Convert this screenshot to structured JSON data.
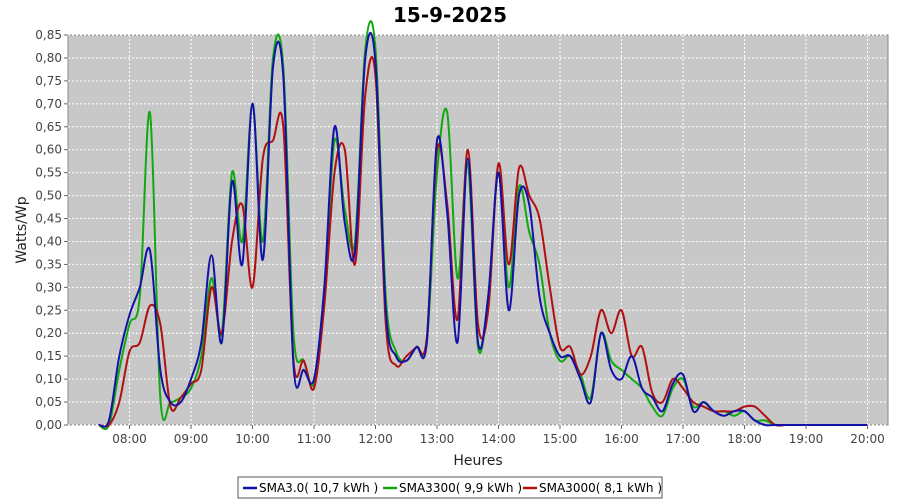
{
  "chart_data": {
    "type": "line",
    "title": "15-9-2025",
    "xlabel": "Heures",
    "ylabel": "Watts/Wp",
    "xlim": [
      "07:00",
      "20:20"
    ],
    "ylim": [
      0,
      0.85
    ],
    "x_ticks": [
      "08:00",
      "09:00",
      "10:00",
      "11:00",
      "12:00",
      "13:00",
      "14:00",
      "15:00",
      "16:00",
      "17:00",
      "18:00",
      "19:00",
      "20:00"
    ],
    "y_ticks": [
      "0,00",
      "0,05",
      "0,10",
      "0,15",
      "0,20",
      "0,25",
      "0,30",
      "0,35",
      "0,40",
      "0,45",
      "0,50",
      "0,55",
      "0,60",
      "0,65",
      "0,70",
      "0,75",
      "0,80",
      "0,85"
    ],
    "grid": true,
    "legend_position": "bottom",
    "x": [
      "07:30",
      "07:40",
      "07:50",
      "08:00",
      "08:10",
      "08:20",
      "08:30",
      "08:40",
      "08:50",
      "09:00",
      "09:10",
      "09:20",
      "09:30",
      "09:40",
      "09:50",
      "10:00",
      "10:10",
      "10:20",
      "10:30",
      "10:40",
      "10:50",
      "11:00",
      "11:10",
      "11:20",
      "11:30",
      "11:40",
      "11:50",
      "12:00",
      "12:10",
      "12:20",
      "12:30",
      "12:40",
      "12:50",
      "13:00",
      "13:10",
      "13:20",
      "13:30",
      "13:40",
      "13:50",
      "14:00",
      "14:10",
      "14:20",
      "14:30",
      "14:40",
      "14:50",
      "15:00",
      "15:10",
      "15:20",
      "15:30",
      "15:40",
      "15:50",
      "16:00",
      "16:10",
      "16:20",
      "16:30",
      "16:40",
      "16:50",
      "17:00",
      "17:10",
      "17:20",
      "17:30",
      "17:40",
      "17:50",
      "18:00",
      "18:10",
      "18:20",
      "18:30",
      "18:40",
      "18:50",
      "19:00",
      "19:10",
      "19:20",
      "19:30",
      "19:40",
      "19:50",
      "20:00"
    ],
    "series": [
      {
        "name": "SMA3.0( 10,7 kWh )",
        "color": "#1212a8",
        "values": [
          0.0,
          0.01,
          0.15,
          0.24,
          0.3,
          0.38,
          0.12,
          0.05,
          0.05,
          0.1,
          0.18,
          0.37,
          0.18,
          0.53,
          0.35,
          0.7,
          0.36,
          0.78,
          0.76,
          0.13,
          0.12,
          0.1,
          0.3,
          0.65,
          0.44,
          0.38,
          0.8,
          0.79,
          0.25,
          0.15,
          0.14,
          0.17,
          0.18,
          0.62,
          0.46,
          0.18,
          0.58,
          0.18,
          0.28,
          0.55,
          0.25,
          0.5,
          0.48,
          0.28,
          0.2,
          0.15,
          0.15,
          0.1,
          0.05,
          0.2,
          0.12,
          0.1,
          0.15,
          0.08,
          0.06,
          0.03,
          0.09,
          0.11,
          0.03,
          0.05,
          0.03,
          0.02,
          0.03,
          0.03,
          0.01,
          0.0,
          0.0,
          0.0,
          0.0,
          0.0,
          0.0,
          0.0,
          0.0,
          0.0,
          0.0,
          0.0
        ]
      },
      {
        "name": "SMA3300( 9,9 kWh )",
        "color": "#12a812",
        "values": [
          0.0,
          0.0,
          0.12,
          0.22,
          0.28,
          0.68,
          0.06,
          0.05,
          0.06,
          0.08,
          0.15,
          0.32,
          0.2,
          0.55,
          0.4,
          0.7,
          0.4,
          0.8,
          0.78,
          0.2,
          0.14,
          0.09,
          0.28,
          0.62,
          0.47,
          0.4,
          0.82,
          0.82,
          0.28,
          0.16,
          0.14,
          0.17,
          0.18,
          0.55,
          0.68,
          0.32,
          0.57,
          0.17,
          0.28,
          0.55,
          0.3,
          0.52,
          0.42,
          0.35,
          0.2,
          0.14,
          0.15,
          0.11,
          0.06,
          0.2,
          0.14,
          0.12,
          0.1,
          0.08,
          0.04,
          0.02,
          0.08,
          0.1,
          0.04,
          0.05,
          0.03,
          0.03,
          0.02,
          0.03,
          0.01,
          0.01,
          0.0,
          0.0,
          0.0,
          0.0,
          0.0,
          0.0,
          0.0,
          0.0,
          0.0,
          0.0
        ]
      },
      {
        "name": "SMA3000( 8,1 kWh )",
        "color": "#b01010",
        "values": [
          0.0,
          0.0,
          0.05,
          0.16,
          0.18,
          0.26,
          0.22,
          0.04,
          0.06,
          0.09,
          0.12,
          0.3,
          0.2,
          0.4,
          0.48,
          0.3,
          0.58,
          0.62,
          0.65,
          0.14,
          0.14,
          0.08,
          0.26,
          0.55,
          0.6,
          0.35,
          0.72,
          0.76,
          0.22,
          0.13,
          0.15,
          0.17,
          0.19,
          0.6,
          0.48,
          0.23,
          0.6,
          0.22,
          0.25,
          0.57,
          0.35,
          0.56,
          0.5,
          0.45,
          0.3,
          0.17,
          0.17,
          0.11,
          0.15,
          0.25,
          0.2,
          0.25,
          0.15,
          0.17,
          0.07,
          0.05,
          0.1,
          0.08,
          0.05,
          0.04,
          0.03,
          0.03,
          0.03,
          0.04,
          0.04,
          0.02,
          0.0,
          0.0,
          0.0,
          0.0,
          0.0,
          0.0,
          0.0,
          0.0,
          0.0,
          0.0
        ]
      }
    ]
  }
}
